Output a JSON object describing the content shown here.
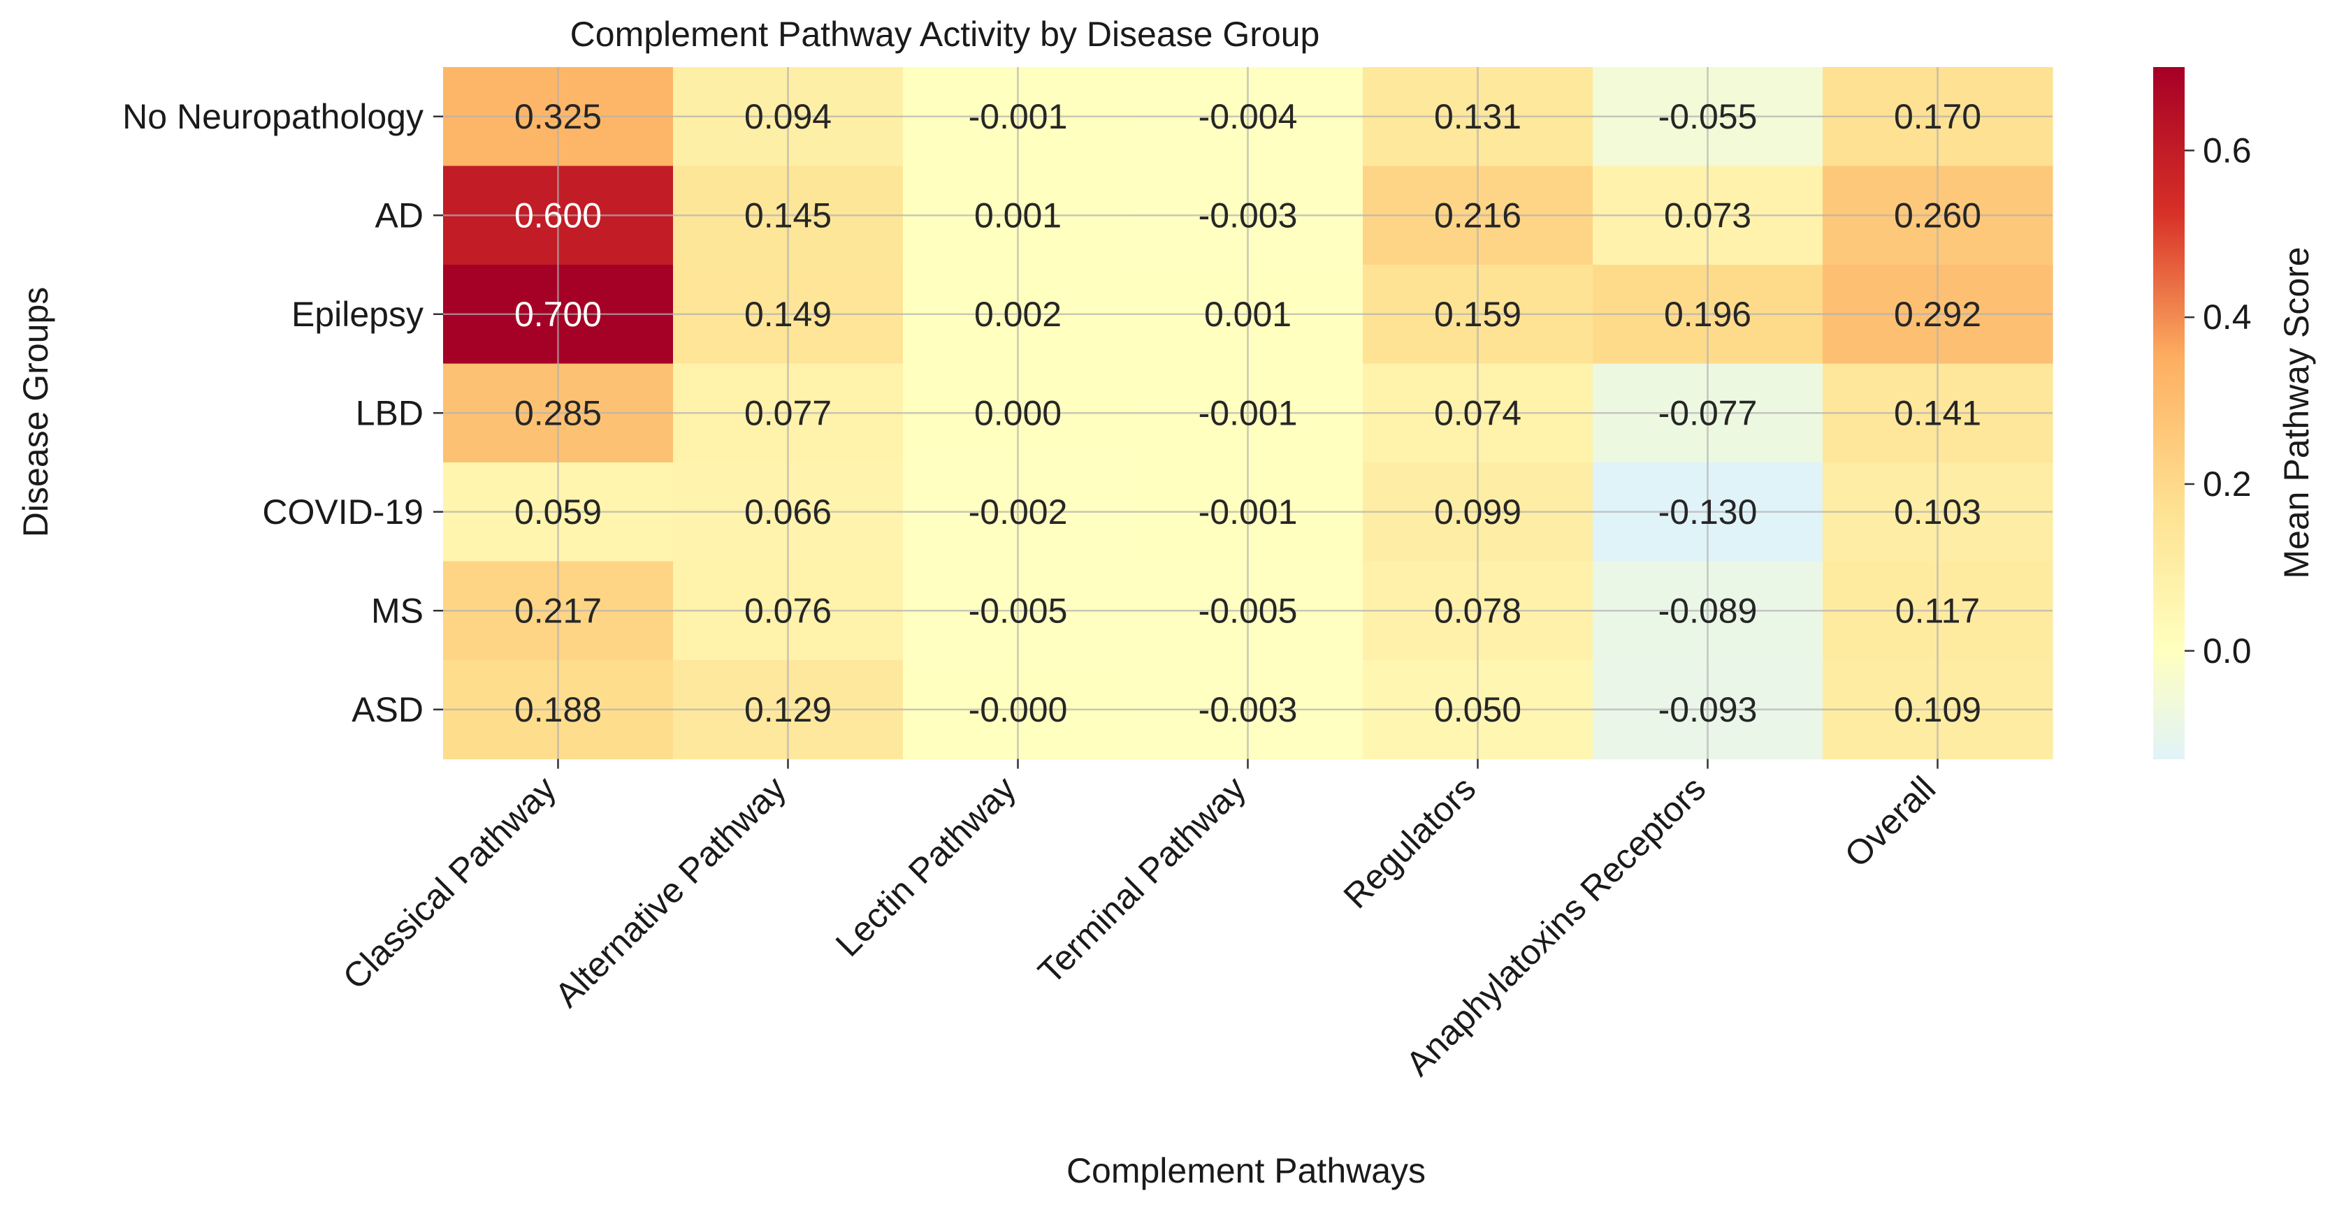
{
  "chart_data": {
    "type": "heatmap",
    "title": "Complement Pathway Activity by Disease Group",
    "xlabel": "Complement Pathways",
    "ylabel": "Disease Groups",
    "columns": [
      "Classical Pathway",
      "Alternative Pathway",
      "Lectin Pathway",
      "Terminal Pathway",
      "Regulators",
      "Anaphylatoxins Receptors",
      "Overall"
    ],
    "rows": [
      "No Neuropathology",
      "AD",
      "Epilepsy",
      "LBD",
      "COVID-19",
      "MS",
      "ASD"
    ],
    "values": [
      [
        0.325,
        0.094,
        -0.001,
        -0.004,
        0.131,
        -0.055,
        0.17
      ],
      [
        0.6,
        0.145,
        0.001,
        -0.003,
        0.216,
        0.073,
        0.26
      ],
      [
        0.7,
        0.149,
        0.002,
        0.001,
        0.159,
        0.196,
        0.292
      ],
      [
        0.285,
        0.077,
        0.0,
        -0.001,
        0.074,
        -0.077,
        0.141
      ],
      [
        0.059,
        0.066,
        -0.002,
        -0.001,
        0.099,
        -0.13,
        0.103
      ],
      [
        0.217,
        0.076,
        -0.005,
        -0.005,
        0.078,
        -0.089,
        0.117
      ],
      [
        0.188,
        0.129,
        -0.0,
        -0.003,
        0.05,
        -0.093,
        0.109
      ]
    ],
    "value_labels": [
      [
        "0.325",
        "0.094",
        "-0.001",
        "-0.004",
        "0.131",
        "-0.055",
        "0.170"
      ],
      [
        "0.600",
        "0.145",
        "0.001",
        "-0.003",
        "0.216",
        "0.073",
        "0.260"
      ],
      [
        "0.700",
        "0.149",
        "0.002",
        "0.001",
        "0.159",
        "0.196",
        "0.292"
      ],
      [
        "0.285",
        "0.077",
        "0.000",
        "-0.001",
        "0.074",
        "-0.077",
        "0.141"
      ],
      [
        "0.059",
        "0.066",
        "-0.002",
        "-0.001",
        "0.099",
        "-0.130",
        "0.103"
      ],
      [
        "0.217",
        "0.076",
        "-0.005",
        "-0.005",
        "0.078",
        "-0.089",
        "0.117"
      ],
      [
        "0.188",
        "0.129",
        "-0.000",
        "-0.003",
        "0.050",
        "-0.093",
        "0.109"
      ]
    ],
    "colorbar": {
      "label": "Mean Pathway Score",
      "range": [
        -0.13,
        0.7
      ],
      "ticks": [
        0.0,
        0.2,
        0.4,
        0.6
      ],
      "tick_labels": [
        "0.0",
        "0.2",
        "0.4",
        "0.6"
      ],
      "colormap": "RdYlBu_r",
      "center": 0
    },
    "grid": true
  }
}
